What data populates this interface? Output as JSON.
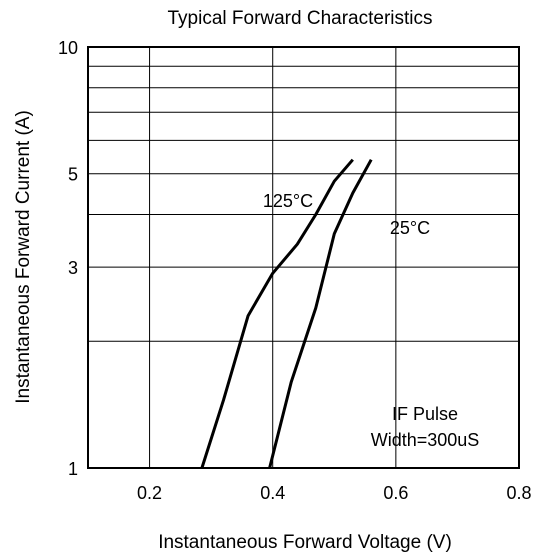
{
  "chart_data": {
    "type": "line",
    "title": "Typical Forward Characteristics",
    "xlabel": "Instantaneous Forward Voltage (V)",
    "ylabel": "Instantaneous Forward Current (A)",
    "xlim": [
      0.1,
      0.8
    ],
    "ylim": [
      1,
      10
    ],
    "y_scale": "log",
    "grid": true,
    "x_ticks": [
      0.2,
      0.4,
      0.6,
      0.8
    ],
    "x_tick_labels": [
      "0.2",
      "0.4",
      "0.6",
      "0.8"
    ],
    "y_ticks": [
      1,
      3,
      5,
      10
    ],
    "y_tick_labels": [
      "1",
      "3",
      "5",
      "10"
    ],
    "y_gridlines": [
      1,
      2,
      3,
      4,
      5,
      6,
      7,
      8,
      9,
      10
    ],
    "series": [
      {
        "name": "125°C",
        "points": [
          [
            0.285,
            1.0
          ],
          [
            0.32,
            1.45
          ],
          [
            0.36,
            2.3
          ],
          [
            0.4,
            2.9
          ],
          [
            0.44,
            3.4
          ],
          [
            0.47,
            4.0
          ],
          [
            0.5,
            4.8
          ],
          [
            0.53,
            5.4
          ]
        ]
      },
      {
        "name": "25°C",
        "points": [
          [
            0.395,
            1.0
          ],
          [
            0.43,
            1.6
          ],
          [
            0.47,
            2.4
          ],
          [
            0.5,
            3.6
          ],
          [
            0.53,
            4.5
          ],
          [
            0.56,
            5.4
          ]
        ]
      }
    ],
    "annotations": [
      "IF Pulse",
      "Width=300uS"
    ]
  },
  "colors": {
    "line": "#000000",
    "grid": "#000000",
    "background": "#ffffff"
  }
}
